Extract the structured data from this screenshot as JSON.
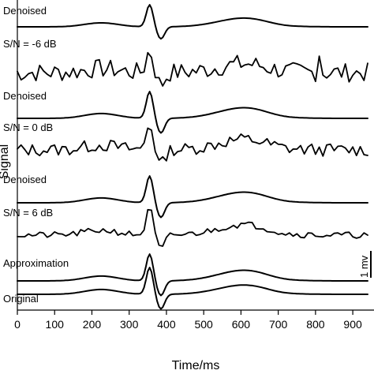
{
  "chart_data": {
    "type": "line",
    "xlabel": "Time/ms",
    "ylabel": "Signal",
    "xlim": [
      0,
      940
    ],
    "x_ticks": [
      "0",
      "100",
      "200",
      "300",
      "400",
      "500",
      "600",
      "700",
      "800",
      "900"
    ],
    "scale_bar_label": "1 mv",
    "grid": false,
    "traces": [
      {
        "label": "Denoised",
        "kind": "denoised",
        "noise": 0,
        "seed": 1
      },
      {
        "label": "S/N = -6 dB",
        "kind": "noisy",
        "noise": 12,
        "seed": 7
      },
      {
        "label": "Denoised",
        "kind": "denoised",
        "noise": 0,
        "seed": 2
      },
      {
        "label": "S/N = 0 dB",
        "kind": "noisy",
        "noise": 8,
        "seed": 13
      },
      {
        "label": "Denoised",
        "kind": "denoised",
        "noise": 0,
        "seed": 3
      },
      {
        "label": "S/N = 6 dB",
        "kind": "noisy",
        "noise": 4,
        "seed": 21
      },
      {
        "label": "Approximation",
        "kind": "denoised",
        "noise": 0,
        "seed": 4
      },
      {
        "label": "Original",
        "kind": "original",
        "noise": 0,
        "seed": 5
      }
    ]
  }
}
